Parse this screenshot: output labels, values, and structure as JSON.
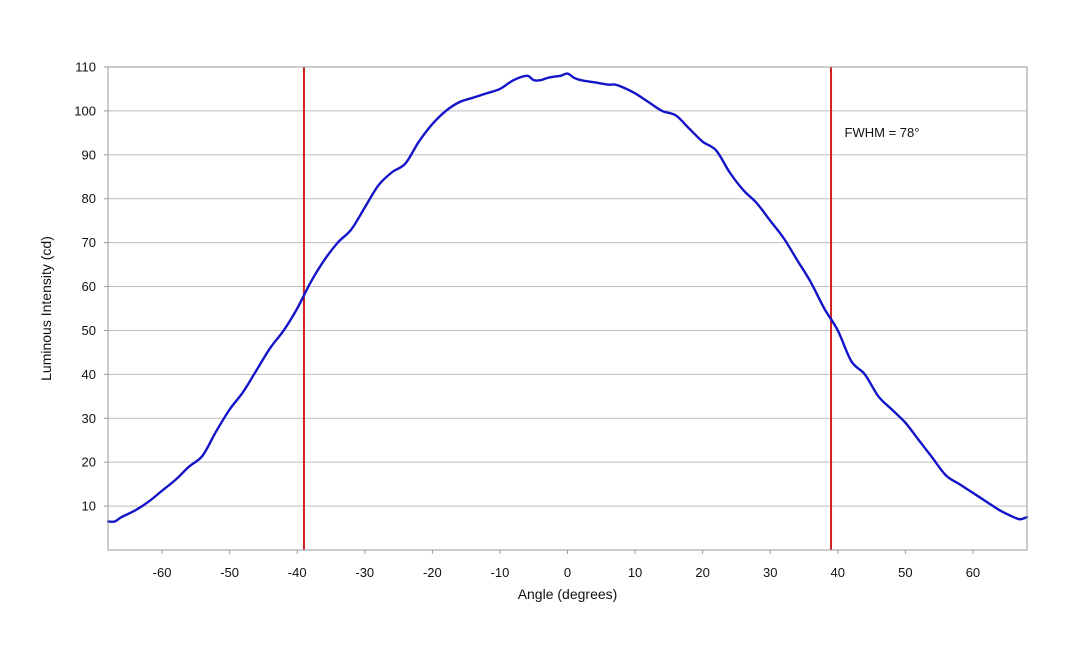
{
  "chart_data": {
    "type": "line",
    "title": "",
    "xlabel": "Angle (degrees)",
    "ylabel": "Luminous Intensity (cd)",
    "xlim": [
      -68,
      68
    ],
    "ylim": [
      0,
      110
    ],
    "grid": true,
    "xticks": [
      -60,
      -50,
      -40,
      -30,
      -20,
      -10,
      0,
      10,
      20,
      30,
      40,
      50,
      60
    ],
    "yticks": [
      10,
      20,
      30,
      40,
      50,
      60,
      70,
      80,
      90,
      100,
      110
    ],
    "series": [
      {
        "color": "#1414c8",
        "x": [
          -68,
          -67,
          -66,
          -64,
          -62,
          -60,
          -58,
          -56,
          -54,
          -52,
          -50,
          -48,
          -46,
          -44,
          -42,
          -40,
          -38,
          -36,
          -34,
          -32,
          -30,
          -28,
          -26,
          -24,
          -22,
          -20,
          -18,
          -16,
          -14,
          -12,
          -10,
          -8,
          -6,
          -5,
          -4,
          -3,
          -2,
          -1,
          0,
          1,
          2,
          4,
          6,
          7,
          8,
          10,
          12,
          14,
          16,
          18,
          20,
          22,
          24,
          26,
          28,
          30,
          32,
          34,
          36,
          38,
          40,
          42,
          44,
          46,
          48,
          50,
          52,
          54,
          56,
          58,
          60,
          62,
          64,
          66,
          67,
          68
        ],
        "y": [
          6.5,
          6.5,
          7.5,
          9,
          11,
          13.5,
          16,
          19,
          21.5,
          27,
          32,
          36,
          41,
          46,
          50,
          55,
          61,
          66,
          70,
          73,
          78,
          83,
          86,
          88,
          93,
          97,
          100,
          102,
          103,
          104,
          105,
          107,
          108,
          107,
          107,
          107.5,
          107.8,
          108,
          108.5,
          107.5,
          107,
          106.5,
          106,
          106,
          105.5,
          104,
          102,
          100,
          99,
          96,
          93,
          91,
          86,
          82,
          79,
          75,
          71,
          66,
          61,
          55,
          50,
          43,
          40,
          35,
          32,
          29,
          25,
          21,
          17,
          15,
          13,
          11,
          9,
          7.5,
          7,
          7.5
        ]
      }
    ],
    "vlines": [
      {
        "x": -39,
        "color": "#d02020"
      },
      {
        "x": 39,
        "color": "#d02020"
      }
    ],
    "annotation": {
      "text": "FWHM = 78°",
      "x": 41,
      "y": 95
    }
  }
}
